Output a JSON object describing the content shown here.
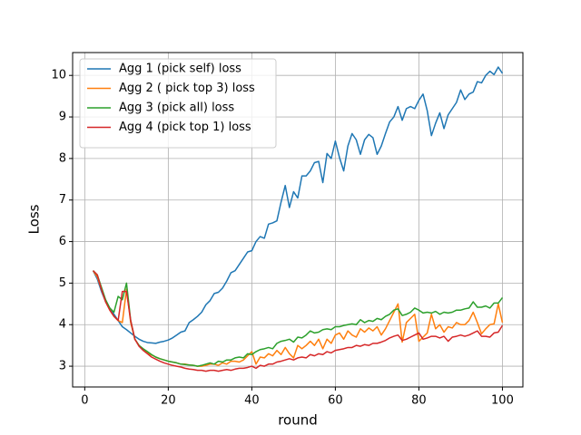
{
  "chart_data": {
    "type": "line",
    "x_label": "round",
    "y_label": "Loss",
    "x": [
      2,
      3,
      4,
      5,
      6,
      7,
      8,
      9,
      10,
      11,
      12,
      13,
      14,
      15,
      16,
      17,
      18,
      19,
      20,
      21,
      22,
      23,
      24,
      25,
      26,
      27,
      28,
      29,
      30,
      31,
      32,
      33,
      34,
      35,
      36,
      37,
      38,
      39,
      40,
      41,
      42,
      43,
      44,
      45,
      46,
      47,
      48,
      49,
      50,
      51,
      52,
      53,
      54,
      55,
      56,
      57,
      58,
      59,
      60,
      61,
      62,
      63,
      64,
      65,
      66,
      67,
      68,
      69,
      70,
      71,
      72,
      73,
      74,
      75,
      76,
      77,
      78,
      79,
      80,
      81,
      82,
      83,
      84,
      85,
      86,
      87,
      88,
      89,
      90,
      91,
      92,
      93,
      94,
      95,
      96,
      97,
      98,
      99,
      100
    ],
    "series": [
      {
        "name": "Agg 1 (pick self) loss",
        "color": "#1f77b4",
        "values": [
          5.3,
          5.1,
          4.8,
          4.55,
          4.4,
          4.25,
          4.1,
          3.95,
          3.88,
          3.8,
          3.72,
          3.65,
          3.6,
          3.57,
          3.56,
          3.55,
          3.58,
          3.6,
          3.63,
          3.68,
          3.75,
          3.82,
          3.85,
          4.05,
          4.12,
          4.2,
          4.3,
          4.48,
          4.58,
          4.75,
          4.78,
          4.88,
          5.05,
          5.25,
          5.3,
          5.45,
          5.6,
          5.75,
          5.78,
          6.0,
          6.12,
          6.08,
          6.42,
          6.45,
          6.5,
          6.95,
          7.35,
          6.82,
          7.2,
          7.05,
          7.58,
          7.58,
          7.7,
          7.9,
          7.93,
          7.42,
          8.12,
          8.0,
          8.42,
          8.02,
          7.7,
          8.3,
          8.6,
          8.45,
          8.1,
          8.45,
          8.58,
          8.5,
          8.1,
          8.3,
          8.6,
          8.88,
          9.0,
          9.25,
          8.92,
          9.2,
          9.25,
          9.2,
          9.4,
          9.55,
          9.15,
          8.55,
          8.85,
          9.1,
          8.72,
          9.05,
          9.2,
          9.35,
          9.65,
          9.42,
          9.55,
          9.6,
          9.85,
          9.82,
          10.0,
          10.1,
          10.02,
          10.2,
          10.05
        ]
      },
      {
        "name": "Agg 2 ( pick top 3) loss",
        "color": "#ff7f0e",
        "values": [
          5.3,
          5.15,
          4.85,
          4.55,
          4.35,
          4.2,
          4.1,
          4.05,
          4.85,
          4.05,
          3.65,
          3.5,
          3.4,
          3.32,
          3.27,
          3.22,
          3.18,
          3.15,
          3.12,
          3.1,
          3.08,
          3.05,
          3.05,
          3.03,
          3.02,
          3.0,
          3.0,
          3.02,
          3.05,
          3.05,
          3.02,
          3.08,
          3.05,
          3.12,
          3.12,
          3.1,
          3.15,
          3.25,
          3.35,
          3.05,
          3.22,
          3.2,
          3.3,
          3.25,
          3.38,
          3.28,
          3.45,
          3.3,
          3.2,
          3.5,
          3.42,
          3.5,
          3.6,
          3.5,
          3.65,
          3.42,
          3.65,
          3.55,
          3.75,
          3.8,
          3.65,
          3.85,
          3.75,
          3.7,
          3.9,
          3.82,
          3.92,
          3.85,
          3.95,
          3.75,
          3.9,
          4.1,
          4.3,
          4.5,
          3.58,
          4.05,
          4.15,
          4.25,
          3.6,
          3.7,
          3.8,
          4.25,
          3.9,
          4.0,
          3.82,
          3.95,
          3.92,
          4.05,
          4.0,
          4.0,
          4.1,
          4.3,
          4.05,
          3.78,
          3.9,
          4.0,
          4.02,
          4.5,
          4.05
        ]
      },
      {
        "name": "Agg 3 (pick all) loss",
        "color": "#2ca02c",
        "values": [
          5.3,
          5.2,
          4.9,
          4.6,
          4.4,
          4.3,
          4.68,
          4.6,
          5.0,
          4.1,
          3.65,
          3.5,
          3.42,
          3.35,
          3.28,
          3.22,
          3.18,
          3.15,
          3.12,
          3.1,
          3.08,
          3.05,
          3.04,
          3.03,
          3.02,
          3.0,
          3.02,
          3.05,
          3.08,
          3.05,
          3.12,
          3.1,
          3.15,
          3.15,
          3.2,
          3.22,
          3.2,
          3.3,
          3.28,
          3.35,
          3.4,
          3.42,
          3.45,
          3.42,
          3.55,
          3.6,
          3.62,
          3.65,
          3.58,
          3.7,
          3.68,
          3.75,
          3.85,
          3.8,
          3.82,
          3.88,
          3.9,
          3.88,
          3.95,
          3.95,
          3.98,
          4.0,
          4.02,
          4.0,
          4.12,
          4.05,
          4.1,
          4.08,
          4.15,
          4.12,
          4.2,
          4.25,
          4.35,
          4.38,
          4.22,
          4.25,
          4.3,
          4.4,
          4.35,
          4.28,
          4.3,
          4.28,
          4.32,
          4.25,
          4.3,
          4.28,
          4.3,
          4.35,
          4.35,
          4.38,
          4.4,
          4.55,
          4.42,
          4.42,
          4.45,
          4.4,
          4.52,
          4.52,
          4.65
        ]
      },
      {
        "name": "Agg 4 (pick top 1) loss",
        "color": "#d62728",
        "values": [
          5.3,
          5.2,
          4.85,
          4.55,
          4.35,
          4.2,
          4.1,
          4.8,
          4.8,
          4.1,
          3.65,
          3.48,
          3.38,
          3.3,
          3.22,
          3.17,
          3.12,
          3.08,
          3.05,
          3.02,
          3.0,
          2.98,
          2.95,
          2.93,
          2.92,
          2.9,
          2.9,
          2.88,
          2.9,
          2.9,
          2.88,
          2.9,
          2.92,
          2.9,
          2.93,
          2.95,
          2.95,
          2.97,
          3.0,
          2.95,
          3.02,
          3.0,
          3.05,
          3.05,
          3.1,
          3.12,
          3.15,
          3.18,
          3.15,
          3.2,
          3.22,
          3.2,
          3.28,
          3.25,
          3.3,
          3.28,
          3.35,
          3.32,
          3.38,
          3.4,
          3.42,
          3.45,
          3.45,
          3.5,
          3.48,
          3.52,
          3.5,
          3.55,
          3.55,
          3.58,
          3.62,
          3.68,
          3.72,
          3.75,
          3.62,
          3.65,
          3.7,
          3.75,
          3.8,
          3.65,
          3.68,
          3.72,
          3.72,
          3.68,
          3.72,
          3.6,
          3.7,
          3.72,
          3.75,
          3.72,
          3.75,
          3.8,
          3.85,
          3.72,
          3.72,
          3.7,
          3.8,
          3.82,
          3.98
        ]
      }
    ],
    "xlim": [
      -2.9,
      104.9
    ],
    "ylim": [
      2.5,
      10.55
    ],
    "xticks": [
      0,
      20,
      40,
      60,
      80,
      100
    ],
    "yticks": [
      3,
      4,
      5,
      6,
      7,
      8,
      9,
      10
    ],
    "grid": true,
    "legend": "upper left"
  }
}
